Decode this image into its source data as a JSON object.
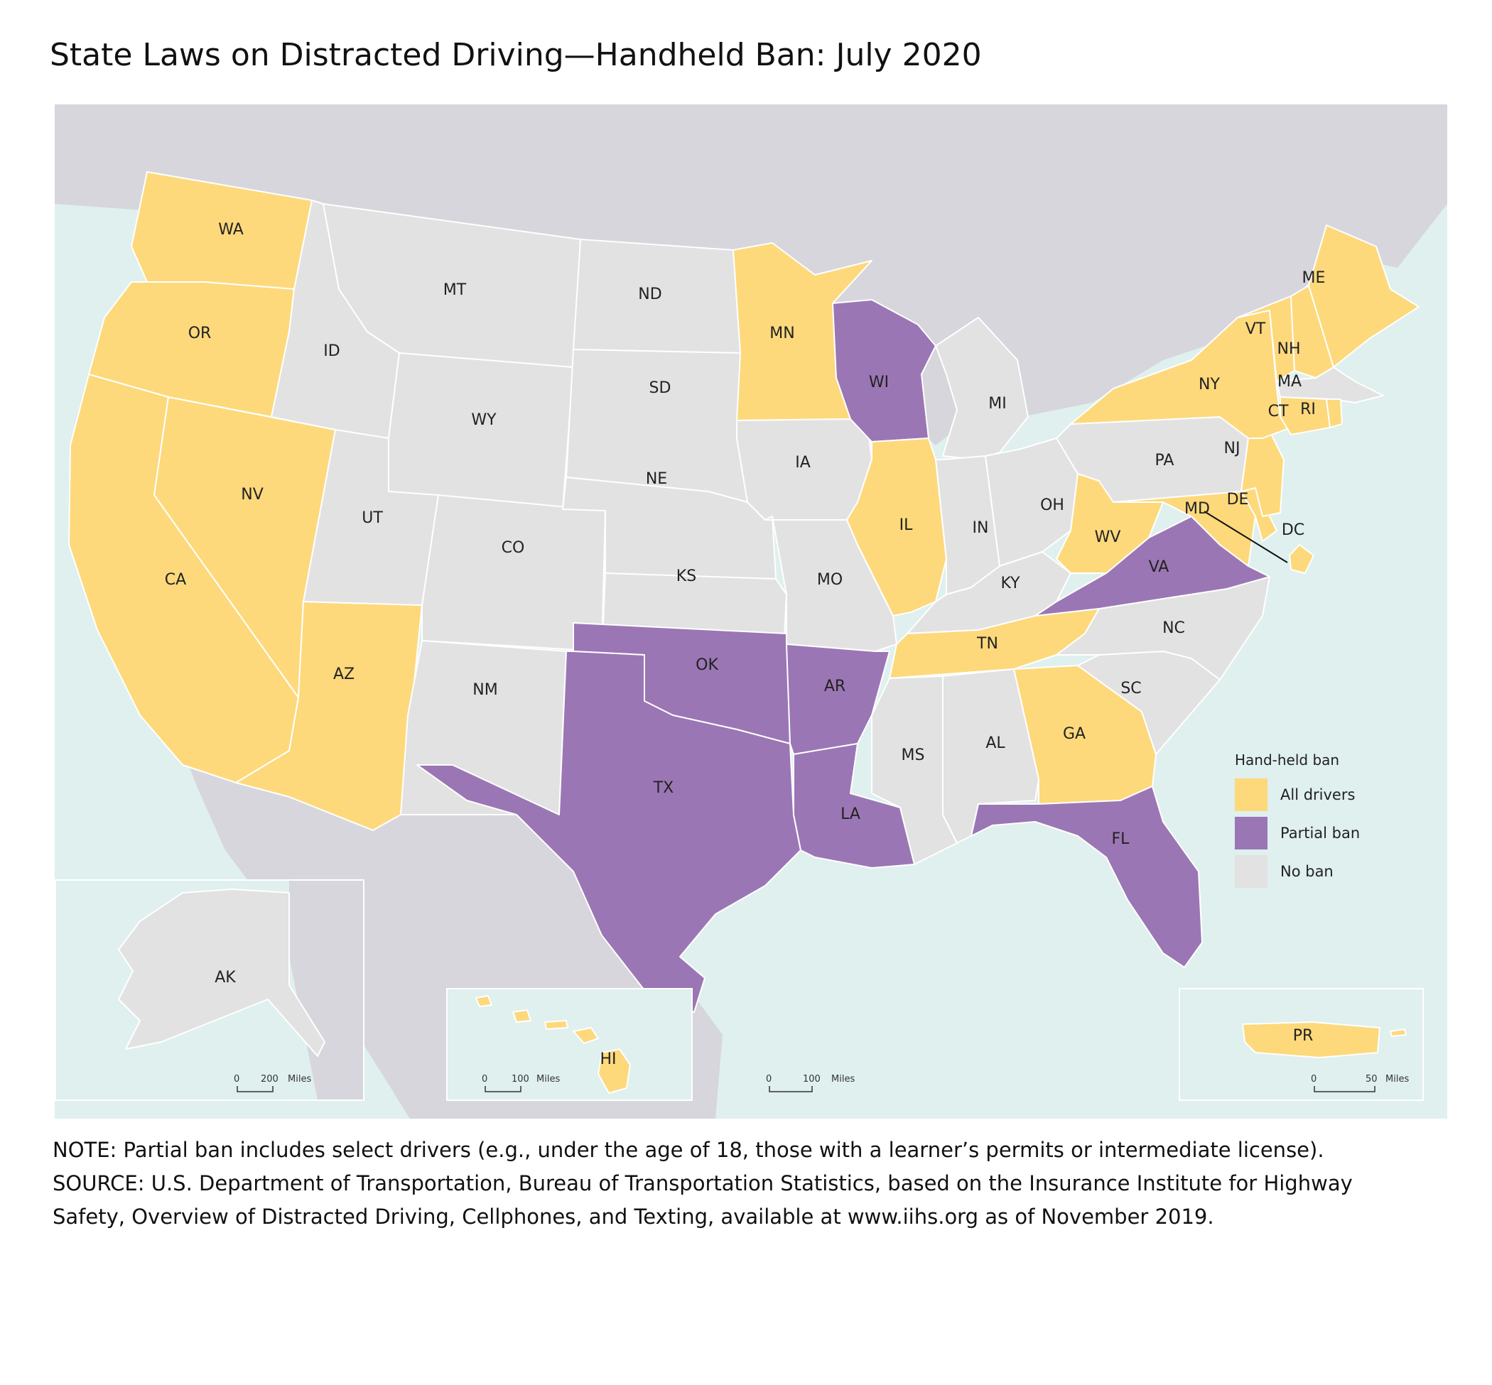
{
  "title": "State Laws on Distracted Driving—Handheld Ban: July 2020",
  "colors": {
    "all_drivers": "#fdd97c",
    "partial_ban": "#9b76b4",
    "no_ban": "#e2e2e2",
    "water": "#dff0ee",
    "land": "#d6d6dc"
  },
  "legend": {
    "title": "Hand-held ban",
    "items": [
      {
        "label": "All drivers",
        "key": "all_drivers"
      },
      {
        "label": "Partial ban",
        "key": "partial_ban"
      },
      {
        "label": "No ban",
        "key": "no_ban"
      }
    ]
  },
  "states": {
    "WA": "all_drivers",
    "OR": "all_drivers",
    "CA": "all_drivers",
    "NV": "all_drivers",
    "AZ": "all_drivers",
    "ID": "no_ban",
    "MT": "no_ban",
    "WY": "no_ban",
    "UT": "no_ban",
    "CO": "no_ban",
    "NM": "no_ban",
    "ND": "no_ban",
    "SD": "no_ban",
    "NE": "no_ban",
    "KS": "no_ban",
    "OK": "partial_ban",
    "TX": "partial_ban",
    "MN": "all_drivers",
    "IA": "no_ban",
    "MO": "no_ban",
    "AR": "partial_ban",
    "LA": "partial_ban",
    "WI": "partial_ban",
    "IL": "all_drivers",
    "MI": "no_ban",
    "IN": "no_ban",
    "OH": "no_ban",
    "KY": "no_ban",
    "TN": "all_drivers",
    "MS": "no_ban",
    "AL": "no_ban",
    "GA": "all_drivers",
    "FL": "partial_ban",
    "SC": "no_ban",
    "NC": "no_ban",
    "VA": "partial_ban",
    "WV": "all_drivers",
    "MD": "all_drivers",
    "DE": "all_drivers",
    "NJ": "all_drivers",
    "PA": "no_ban",
    "NY": "all_drivers",
    "CT": "all_drivers",
    "RI": "all_drivers",
    "MA": "no_ban",
    "VT": "all_drivers",
    "NH": "all_drivers",
    "ME": "all_drivers",
    "DC": "all_drivers",
    "AK": "no_ban",
    "HI": "all_drivers",
    "PR": "all_drivers"
  },
  "scale_bars": {
    "alaska": {
      "zero": "0",
      "value": "200",
      "unit": "Miles"
    },
    "hawaii": {
      "zero": "0",
      "value": "100",
      "unit": "Miles"
    },
    "mainland": {
      "zero": "0",
      "value": "100",
      "unit": "Miles"
    },
    "puerto_rico": {
      "zero": "0",
      "value": "50",
      "unit": "Miles"
    }
  },
  "notes": {
    "note": "NOTE: Partial ban includes select drivers (e.g., under the age of 18, those with a learner’s permits or intermediate license).",
    "source_line1": "SOURCE: U.S. Department of Transportation, Bureau of Transportation Statistics, based on the Insurance Institute for Highway",
    "source_line2": "Safety, Overview of Distracted Driving, Cellphones, and Texting, available at www.iihs.org as of November 2019."
  }
}
